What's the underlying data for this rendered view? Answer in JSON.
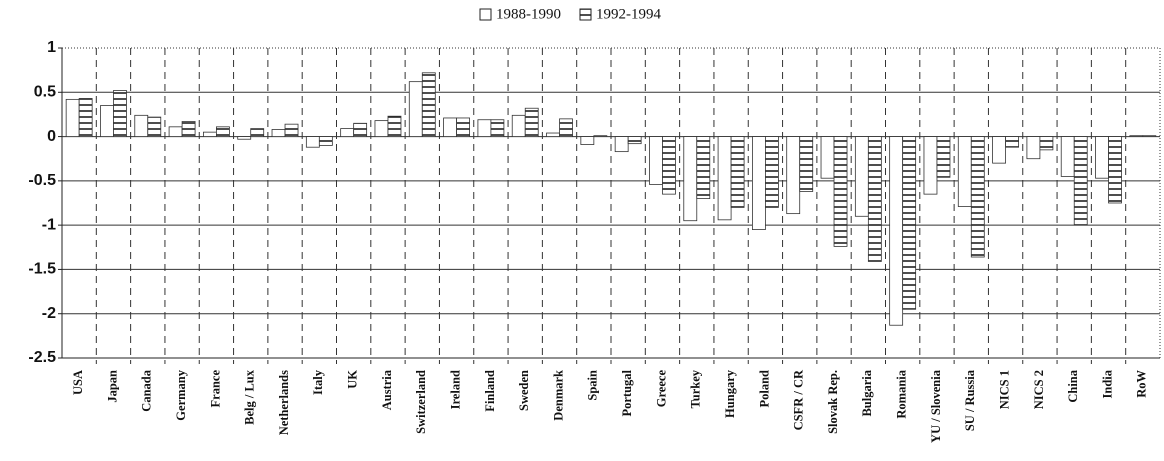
{
  "chart_data": {
    "type": "bar",
    "categories": [
      "USA",
      "Japan",
      "Canada",
      "Germany",
      "France",
      "Belg / Lux",
      "Netherlands",
      "Italy",
      "UK",
      "Austria",
      "Switzerland",
      "Ireland",
      "Finland",
      "Sweden",
      "Denmark",
      "Spain",
      "Portugal",
      "Greece",
      "Turkey",
      "Hungary",
      "Poland",
      "CSFR / CR",
      "Slovak Rep.",
      "Bulgaria",
      "Romania",
      "YU / Slovenia",
      "SU / Russia",
      "NICS 1",
      "NICS 2",
      "China",
      "India",
      "RoW"
    ],
    "series": [
      {
        "name": "1988-1990",
        "color": "#ffffff",
        "hatch": false,
        "values": [
          0.42,
          0.35,
          0.24,
          0.11,
          0.05,
          -0.03,
          0.08,
          -0.12,
          0.09,
          0.18,
          0.62,
          0.21,
          0.19,
          0.24,
          0.04,
          -0.09,
          -0.17,
          -0.54,
          -0.95,
          -0.94,
          -1.05,
          -0.87,
          -0.47,
          -0.9,
          -2.13,
          -0.65,
          -0.79,
          -0.3,
          -0.25,
          -0.45,
          -0.47,
          0.01
        ]
      },
      {
        "name": "1992-1994",
        "color": "#ffffff",
        "hatch": true,
        "values": [
          0.43,
          0.52,
          0.22,
          0.17,
          0.11,
          0.09,
          0.14,
          -0.1,
          0.15,
          0.23,
          0.72,
          0.21,
          0.19,
          0.32,
          0.2,
          0.01,
          -0.08,
          -0.65,
          -0.7,
          -0.8,
          -0.8,
          -0.62,
          -1.24,
          -1.41,
          -1.95,
          -0.46,
          -1.36,
          -0.12,
          -0.15,
          -1.0,
          -0.75,
          0.01
        ]
      }
    ],
    "ylim": [
      -2.5,
      1
    ],
    "yticks": [
      1,
      0.5,
      0,
      -0.5,
      -1,
      -1.5,
      -2,
      -2.5
    ],
    "grid": true,
    "legend": "top"
  }
}
